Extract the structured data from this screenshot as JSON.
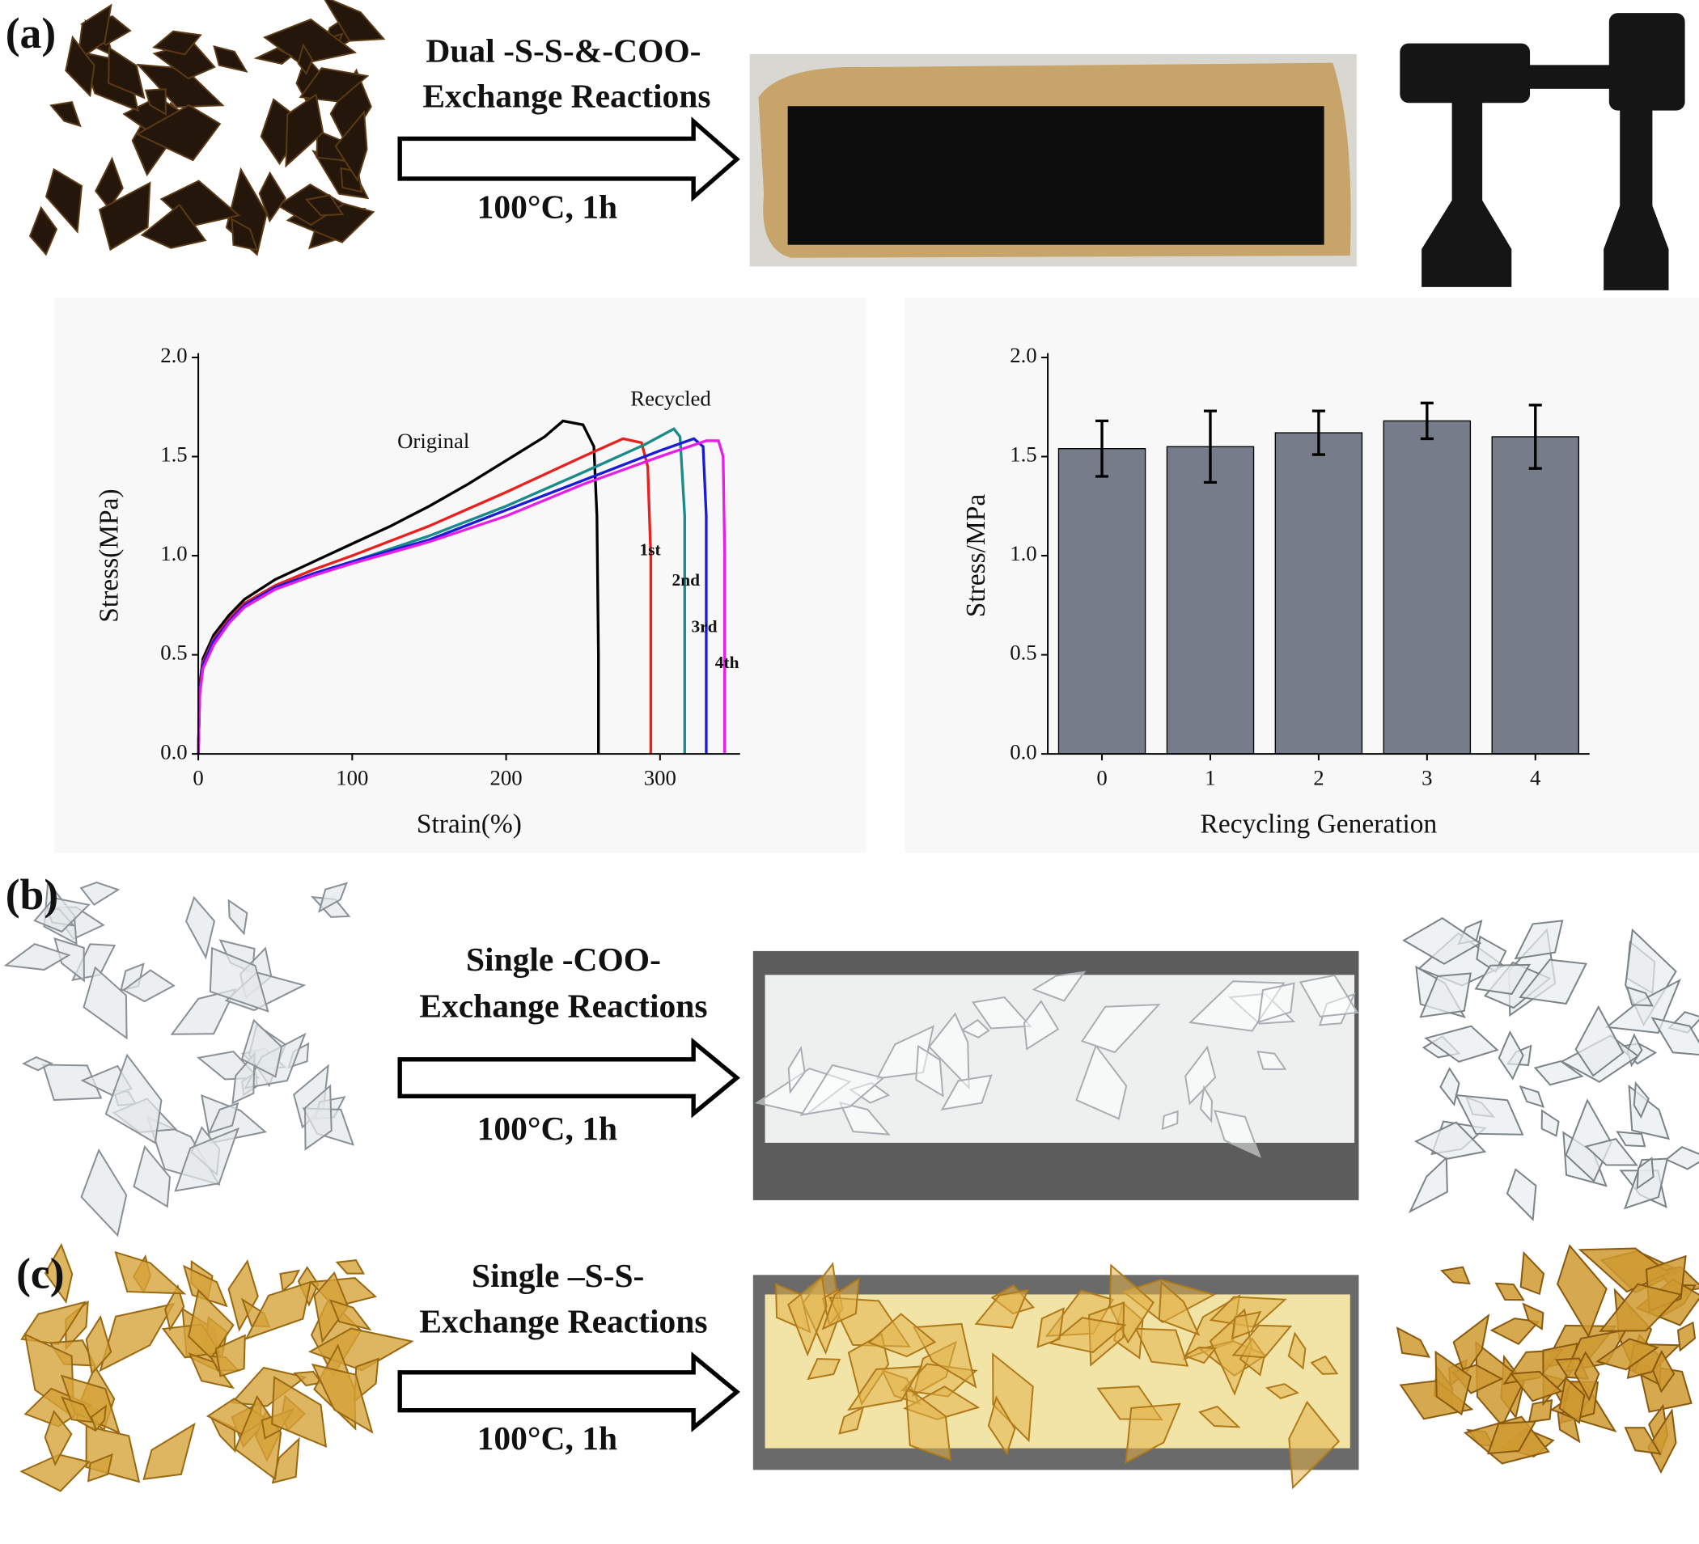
{
  "panels": [
    {
      "label": "(a)",
      "reaction": [
        "Dual -S-S-&-COO-",
        "Exchange Reactions"
      ],
      "condition": "100°C, 1h"
    },
    {
      "label": "(b)",
      "reaction": [
        "Single -COO-",
        "Exchange Reactions"
      ],
      "condition": "100°C, 1h"
    },
    {
      "label": "(c)",
      "reaction": [
        "Single –S-S-",
        "Exchange Reactions"
      ],
      "condition": "100°C, 1h"
    }
  ],
  "chart_data": [
    {
      "type": "line",
      "xlabel": "Strain(%)",
      "ylabel": "Stress(MPa)",
      "annotation": "Recycled",
      "xlim": [
        0,
        352
      ],
      "xticks": [
        0,
        100,
        200,
        300
      ],
      "ylim": [
        0,
        2.0
      ],
      "yticks": [
        {
          "value": 0,
          "label": "0.0"
        },
        0.5,
        {
          "value": 1,
          "label": "1.0"
        },
        1.5,
        {
          "value": 2,
          "label": "2.0"
        }
      ],
      "series": [
        {
          "name": "Original",
          "color": "#000000",
          "x": [
            0,
            1,
            3,
            10,
            20,
            30,
            50,
            75,
            100,
            125,
            150,
            175,
            200,
            225,
            237,
            250,
            257,
            259,
            260,
            260
          ],
          "values": [
            0,
            0.35,
            0.48,
            0.6,
            0.7,
            0.78,
            0.88,
            0.97,
            1.06,
            1.15,
            1.25,
            1.36,
            1.48,
            1.6,
            1.68,
            1.66,
            1.55,
            1.2,
            0.5,
            0
          ]
        },
        {
          "name": "1st",
          "color": "#e8201e",
          "x": [
            0,
            1,
            3,
            10,
            20,
            30,
            50,
            75,
            100,
            150,
            200,
            250,
            276,
            288,
            292,
            294,
            294
          ],
          "values": [
            0,
            0.33,
            0.46,
            0.58,
            0.68,
            0.76,
            0.85,
            0.93,
            1.0,
            1.15,
            1.32,
            1.5,
            1.59,
            1.57,
            1.45,
            1.0,
            0
          ]
        },
        {
          "name": "2nd",
          "color": "#1a8a8a",
          "x": [
            0,
            1,
            3,
            10,
            20,
            30,
            50,
            75,
            100,
            150,
            200,
            250,
            290,
            309,
            313,
            316,
            316
          ],
          "values": [
            0,
            0.32,
            0.45,
            0.57,
            0.67,
            0.75,
            0.84,
            0.91,
            0.97,
            1.1,
            1.25,
            1.42,
            1.56,
            1.64,
            1.6,
            1.2,
            0
          ]
        },
        {
          "name": "3rd",
          "color": "#1c1cd6",
          "x": [
            0,
            1,
            3,
            10,
            20,
            30,
            50,
            75,
            100,
            150,
            200,
            250,
            300,
            322,
            328,
            330,
            330
          ],
          "values": [
            0,
            0.32,
            0.45,
            0.57,
            0.67,
            0.75,
            0.84,
            0.91,
            0.97,
            1.08,
            1.23,
            1.38,
            1.53,
            1.59,
            1.55,
            1.2,
            0
          ]
        },
        {
          "name": "4th",
          "color": "#e81ee8",
          "x": [
            0,
            1,
            3,
            10,
            20,
            30,
            50,
            75,
            100,
            150,
            200,
            250,
            300,
            330,
            338,
            341,
            342,
            342
          ],
          "values": [
            0,
            0.3,
            0.43,
            0.55,
            0.66,
            0.74,
            0.83,
            0.9,
            0.96,
            1.07,
            1.2,
            1.36,
            1.5,
            1.58,
            1.58,
            1.5,
            1.0,
            0
          ]
        }
      ]
    },
    {
      "type": "bar",
      "xlabel": "Recycling Generation",
      "ylabel": "Stress/MPa",
      "color": "#767c8a",
      "categories": [
        "0",
        "1",
        "2",
        "3",
        "4"
      ],
      "values": [
        1.54,
        1.55,
        1.62,
        1.68,
        1.6
      ],
      "errors": [
        0.14,
        0.18,
        0.11,
        0.09,
        0.16
      ],
      "ylim": [
        0,
        2.0
      ],
      "yticks": [
        {
          "value": 0,
          "label": "0.0"
        },
        0.5,
        {
          "value": 1,
          "label": "1.0"
        },
        1.5,
        {
          "value": 2,
          "label": "2.0"
        }
      ]
    }
  ]
}
